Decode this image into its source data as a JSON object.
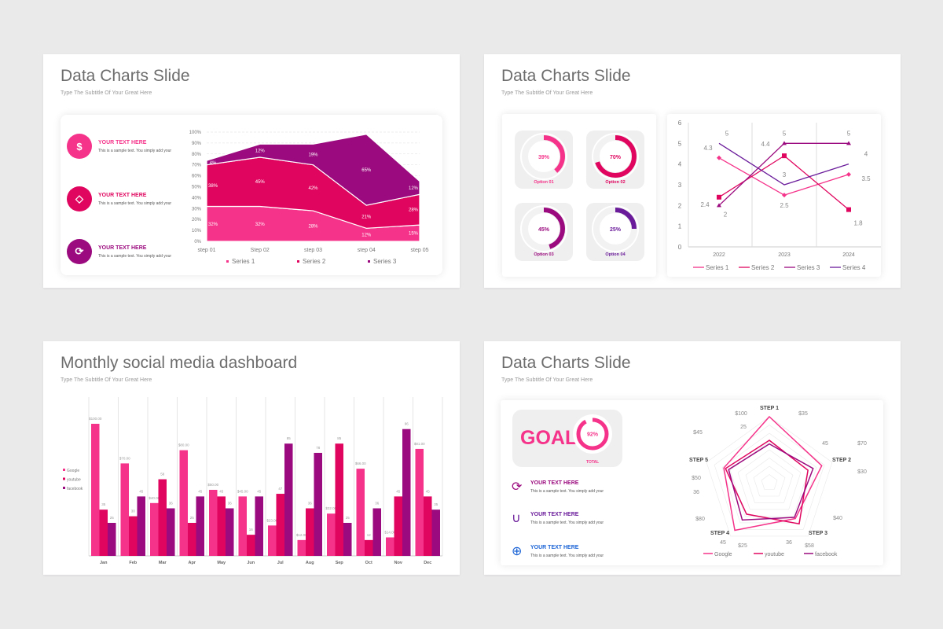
{
  "colors": {
    "pink": "#f5338a",
    "crimson": "#e0065f",
    "magenta": "#9b0a7e",
    "purple": "#6a1b9a",
    "blue": "#1a63d6"
  },
  "slide1": {
    "title": "Data Charts Slide",
    "subtitle": "Type The Subtitle Of Your Great Here",
    "items": [
      {
        "heading": "YOUR TEXT HERE",
        "text": "This is a sample text. You simply add your",
        "icon": "house-dollar-icon"
      },
      {
        "heading": "YOUR TEXT HERE",
        "text": "This is a sample text. You simply add your",
        "icon": "diamond-icon"
      },
      {
        "heading": "YOUR TEXT HERE",
        "text": "This is a sample text. You simply add your",
        "icon": "dollar-cycle-icon"
      }
    ]
  },
  "slide2": {
    "title": "Data Charts Slide",
    "subtitle": "Type The Subtitle Of Your Great Here",
    "donuts": [
      {
        "label": "Option 01",
        "value": 39,
        "text": "39%"
      },
      {
        "label": "Option 02",
        "value": 70,
        "text": "70%"
      },
      {
        "label": "Option 03",
        "value": 45,
        "text": "45%"
      },
      {
        "label": "Option 04",
        "value": 25,
        "text": "25%"
      }
    ]
  },
  "slide3": {
    "title": "Monthly social media dashboard",
    "subtitle": "Type The Subtitle Of Your Great Here"
  },
  "slide4": {
    "title": "Data Charts Slide",
    "subtitle": "Type The Subtitle Of Your Great Here",
    "goal": {
      "label": "GOAL",
      "value": 92,
      "text": "92%",
      "caption": "TOTAL"
    },
    "items": [
      {
        "heading": "YOUR TEXT HERE",
        "text": "This is a sample text. You simply add your",
        "icon": "dollar-cycle-icon"
      },
      {
        "heading": "YOUR TEXT HERE",
        "text": "This is a sample text. You simply add your",
        "icon": "magnet-icon"
      },
      {
        "heading": "YOUR TEXT HERE",
        "text": "This is a sample text. You simply add your",
        "icon": "target-icon"
      }
    ]
  },
  "chart_data": [
    {
      "type": "area",
      "stacked": true,
      "categories": [
        "step 01",
        "Step 02",
        "step 03",
        "step 04",
        "step 05"
      ],
      "ylim": [
        0,
        100
      ],
      "yticks": [
        "0%",
        "10%",
        "20%",
        "30%",
        "40%",
        "50%",
        "60%",
        "70%",
        "80%",
        "90%",
        "100%"
      ],
      "series": [
        {
          "name": "Series 1",
          "values": [
            32,
            32,
            28,
            12,
            15
          ],
          "labels": [
            "32%",
            "32%",
            "28%",
            "12%",
            "15%"
          ]
        },
        {
          "name": "Series 2",
          "values": [
            38,
            45,
            42,
            21,
            28
          ],
          "labels": [
            "38%",
            "45%",
            "42%",
            "21%",
            "28%"
          ]
        },
        {
          "name": "Series 3",
          "values": [
            4,
            12,
            19,
            65,
            12
          ],
          "labels": [
            "4%",
            "12%",
            "19%",
            "65%",
            "12%"
          ]
        }
      ],
      "legend": "bottom"
    },
    {
      "type": "line",
      "categories": [
        "2022",
        "2023",
        "2024"
      ],
      "ylim": [
        0,
        6
      ],
      "yticks": [
        "0",
        "1",
        "2",
        "3",
        "4",
        "5",
        "6"
      ],
      "series": [
        {
          "name": "Series 1",
          "values": [
            4.3,
            2.5,
            3.5
          ],
          "marker": "diamond"
        },
        {
          "name": "Series 2",
          "values": [
            2.4,
            4.4,
            1.8
          ],
          "marker": "square"
        },
        {
          "name": "Series 3",
          "values": [
            2,
            5,
            5
          ],
          "marker": "triangle"
        },
        {
          "name": "Series 4",
          "values": [
            5,
            3,
            4
          ],
          "marker": "none"
        }
      ],
      "legend": "bottom"
    },
    {
      "type": "bar",
      "categories": [
        "Jan",
        "Feb",
        "Mar",
        "Apr",
        "May",
        "Jun",
        "Jul",
        "Aug",
        "Sep",
        "Oct",
        "Nov",
        "Dec"
      ],
      "ylim": [
        0,
        100
      ],
      "series": [
        {
          "name": "Google",
          "values": [
            100,
            70,
            40,
            80,
            50,
            45,
            23,
            12,
            32,
            66,
            14,
            81
          ],
          "labels": [
            "$100.00",
            "$70.00",
            "$40.00",
            "$80.00",
            "$50.00",
            "$45.00",
            "$23.00",
            "$12.00",
            "$32.00",
            "$66.00",
            "$14.00",
            "$81.00"
          ]
        },
        {
          "name": "youtube",
          "values": [
            35,
            30,
            58,
            25,
            45,
            16,
            47,
            36,
            85,
            12,
            45,
            45
          ]
        },
        {
          "name": "facebook",
          "values": [
            25,
            45,
            36,
            45,
            36,
            45,
            85,
            78,
            25,
            36,
            96,
            35
          ]
        }
      ],
      "legend": "left"
    },
    {
      "type": "radar",
      "categories": [
        "STEP 1",
        "STEP 2",
        "STEP 3",
        "STEP 4",
        "STEP 5"
      ],
      "series": [
        {
          "name": "Google",
          "values": [
            100,
            70,
            40,
            80,
            50
          ],
          "labels": [
            "$100",
            "$70",
            "$40",
            "$80",
            "$50"
          ]
        },
        {
          "name": "youtube",
          "values": [
            35,
            30,
            58,
            25,
            45
          ],
          "labels": [
            "$35",
            "$30",
            "$58",
            "$25",
            "$45"
          ]
        },
        {
          "name": "facebook",
          "values": [
            25,
            45,
            36,
            45,
            36
          ],
          "labels": [
            "25",
            "45",
            "36",
            "45",
            "36"
          ]
        }
      ],
      "legend": "bottom"
    }
  ]
}
